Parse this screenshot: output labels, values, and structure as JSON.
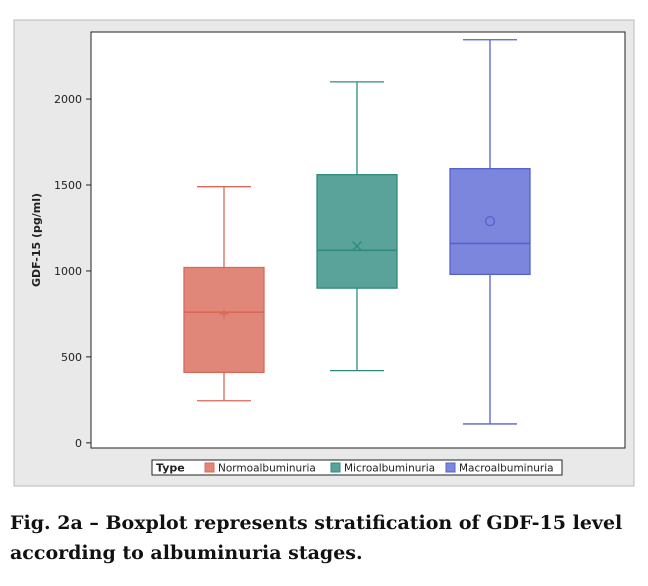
{
  "chart_data": {
    "type": "boxplot",
    "ylabel": "GDF-15 (pg/ml)",
    "ylim": [
      -30,
      2390
    ],
    "yticks": [
      0,
      500,
      1000,
      1500,
      2000
    ],
    "legend": {
      "title": "Type",
      "position": "bottom"
    },
    "series": [
      {
        "name": "Normoalbuminuria",
        "color": "#d9685a",
        "fill": "#e1877a",
        "marker": "+",
        "whisker_low": 245,
        "q1": 410,
        "median": 760,
        "q3": 1020,
        "whisker_high": 1490,
        "mean": 750
      },
      {
        "name": "Microalbuminuria",
        "color": "#2e8b7f",
        "fill": "#5aa39a",
        "marker": "x",
        "whisker_low": 420,
        "q1": 900,
        "median": 1120,
        "q3": 1560,
        "whisker_high": 2100,
        "mean": 1145
      },
      {
        "name": "Macroalbuminuria",
        "color": "#5461d0",
        "fill": "#7c86dc",
        "marker": "o",
        "whisker_low": 110,
        "q1": 980,
        "median": 1160,
        "q3": 1595,
        "whisker_high": 2345,
        "mean": 1290
      }
    ]
  },
  "caption": {
    "line1": "Fig. 2a – Boxplot represents stratification of GDF-15 level",
    "line2": "according to albuminuria stages."
  }
}
